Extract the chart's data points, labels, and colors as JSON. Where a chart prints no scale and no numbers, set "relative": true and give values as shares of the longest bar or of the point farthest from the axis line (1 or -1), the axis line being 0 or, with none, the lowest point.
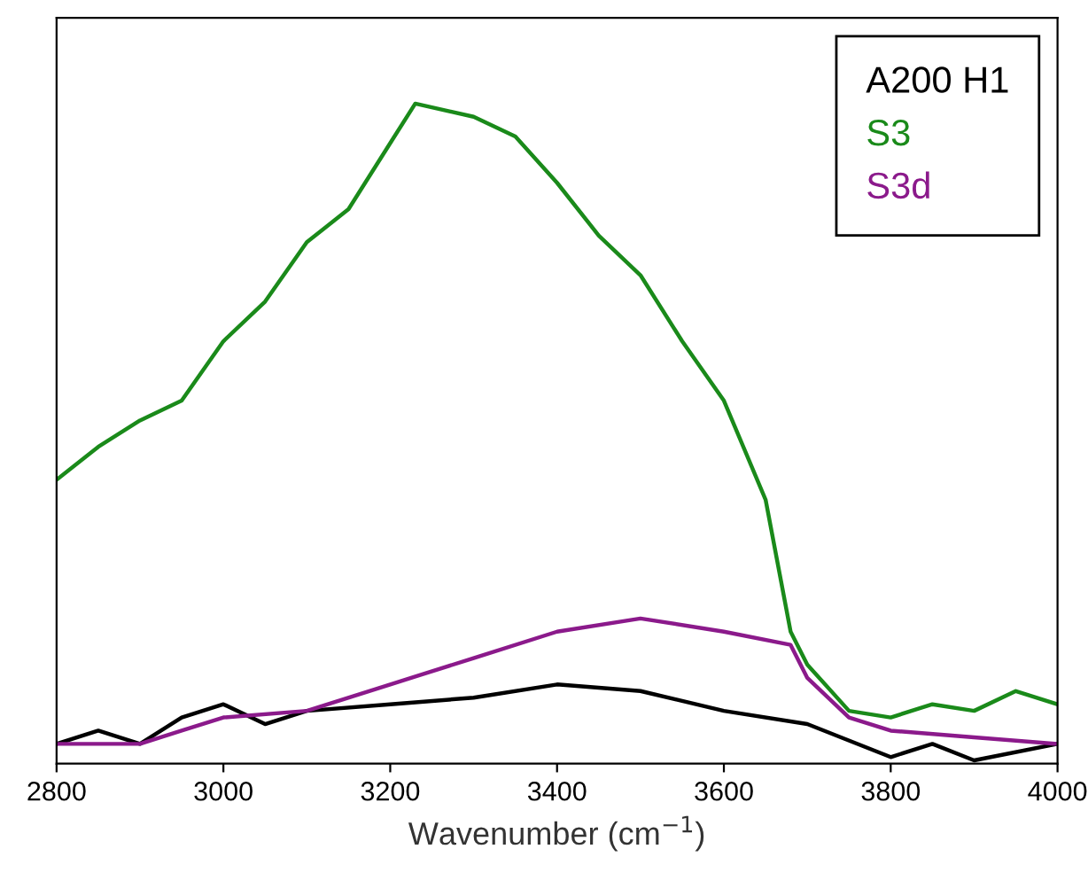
{
  "chart_data": {
    "type": "line",
    "relative": true,
    "xlabel": "Wavenumber (cm$^{−1}$)",
    "xlim": [
      2800,
      4000
    ],
    "xticks": [
      2800,
      3000,
      3200,
      3400,
      3600,
      3800,
      4000
    ],
    "grid": false,
    "legend": "top right",
    "line_style": "solid",
    "marker": "none",
    "series": [
      {
        "name": "A200 H1",
        "color": "#000000",
        "x": [
          2800,
          2850,
          2900,
          2950,
          3000,
          3050,
          3100,
          3200,
          3300,
          3400,
          3500,
          3600,
          3700,
          3800,
          3850,
          3900,
          4000
        ],
        "values": [
          0.03,
          0.05,
          0.03,
          0.07,
          0.09,
          0.06,
          0.08,
          0.09,
          0.1,
          0.12,
          0.11,
          0.08,
          0.06,
          0.01,
          0.03,
          0.005,
          0.03
        ]
      },
      {
        "name": "S3",
        "color": "#1a8a1a",
        "x": [
          2800,
          2850,
          2900,
          2950,
          3000,
          3050,
          3100,
          3150,
          3200,
          3230,
          3300,
          3350,
          3400,
          3450,
          3500,
          3550,
          3600,
          3650,
          3680,
          3700,
          3750,
          3800,
          3850,
          3900,
          3950,
          4000
        ],
        "values": [
          0.43,
          0.48,
          0.52,
          0.55,
          0.64,
          0.7,
          0.79,
          0.84,
          0.94,
          1.0,
          0.98,
          0.95,
          0.88,
          0.8,
          0.74,
          0.64,
          0.55,
          0.4,
          0.2,
          0.15,
          0.08,
          0.07,
          0.09,
          0.08,
          0.11,
          0.09
        ]
      },
      {
        "name": "S3d",
        "color": "#8b1a8b",
        "x": [
          2800,
          2900,
          2950,
          3000,
          3100,
          3200,
          3300,
          3400,
          3500,
          3600,
          3680,
          3700,
          3750,
          3800,
          3900,
          4000
        ],
        "values": [
          0.03,
          0.03,
          0.05,
          0.07,
          0.08,
          0.12,
          0.16,
          0.2,
          0.22,
          0.2,
          0.18,
          0.13,
          0.07,
          0.05,
          0.04,
          0.03
        ]
      }
    ]
  }
}
